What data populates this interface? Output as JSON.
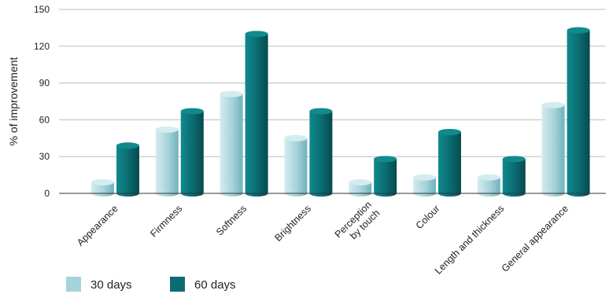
{
  "colors": {
    "s30_light": "#d3ecef",
    "s30_mid": "#a6d2d9",
    "s30_dark": "#6fb2bd",
    "s60_light": "#0f8a8e",
    "s60_mid": "#0b6d72",
    "s60_dark": "#064a4f",
    "grid": "#bdbdbd",
    "axis": "#333333"
  },
  "chart_data": {
    "type": "bar",
    "ylabel": "% of improvement",
    "ylim": [
      0,
      150
    ],
    "yticks": [
      0,
      30,
      60,
      90,
      120,
      150
    ],
    "grid": true,
    "legend_position": "bottom-left",
    "categories": [
      [
        "Appearance"
      ],
      [
        "Firmness"
      ],
      [
        "Softness"
      ],
      [
        "Brightness"
      ],
      [
        "Perception",
        "by touch"
      ],
      [
        "Colour"
      ],
      [
        "Length and thickness"
      ],
      [
        "General appearance"
      ]
    ],
    "series": [
      {
        "name": "30 days",
        "values": [
          9,
          52,
          81,
          45,
          9,
          13,
          13,
          72
        ]
      },
      {
        "name": "60 days",
        "values": [
          39,
          67,
          130,
          67,
          28,
          50,
          28,
          133
        ]
      }
    ]
  }
}
